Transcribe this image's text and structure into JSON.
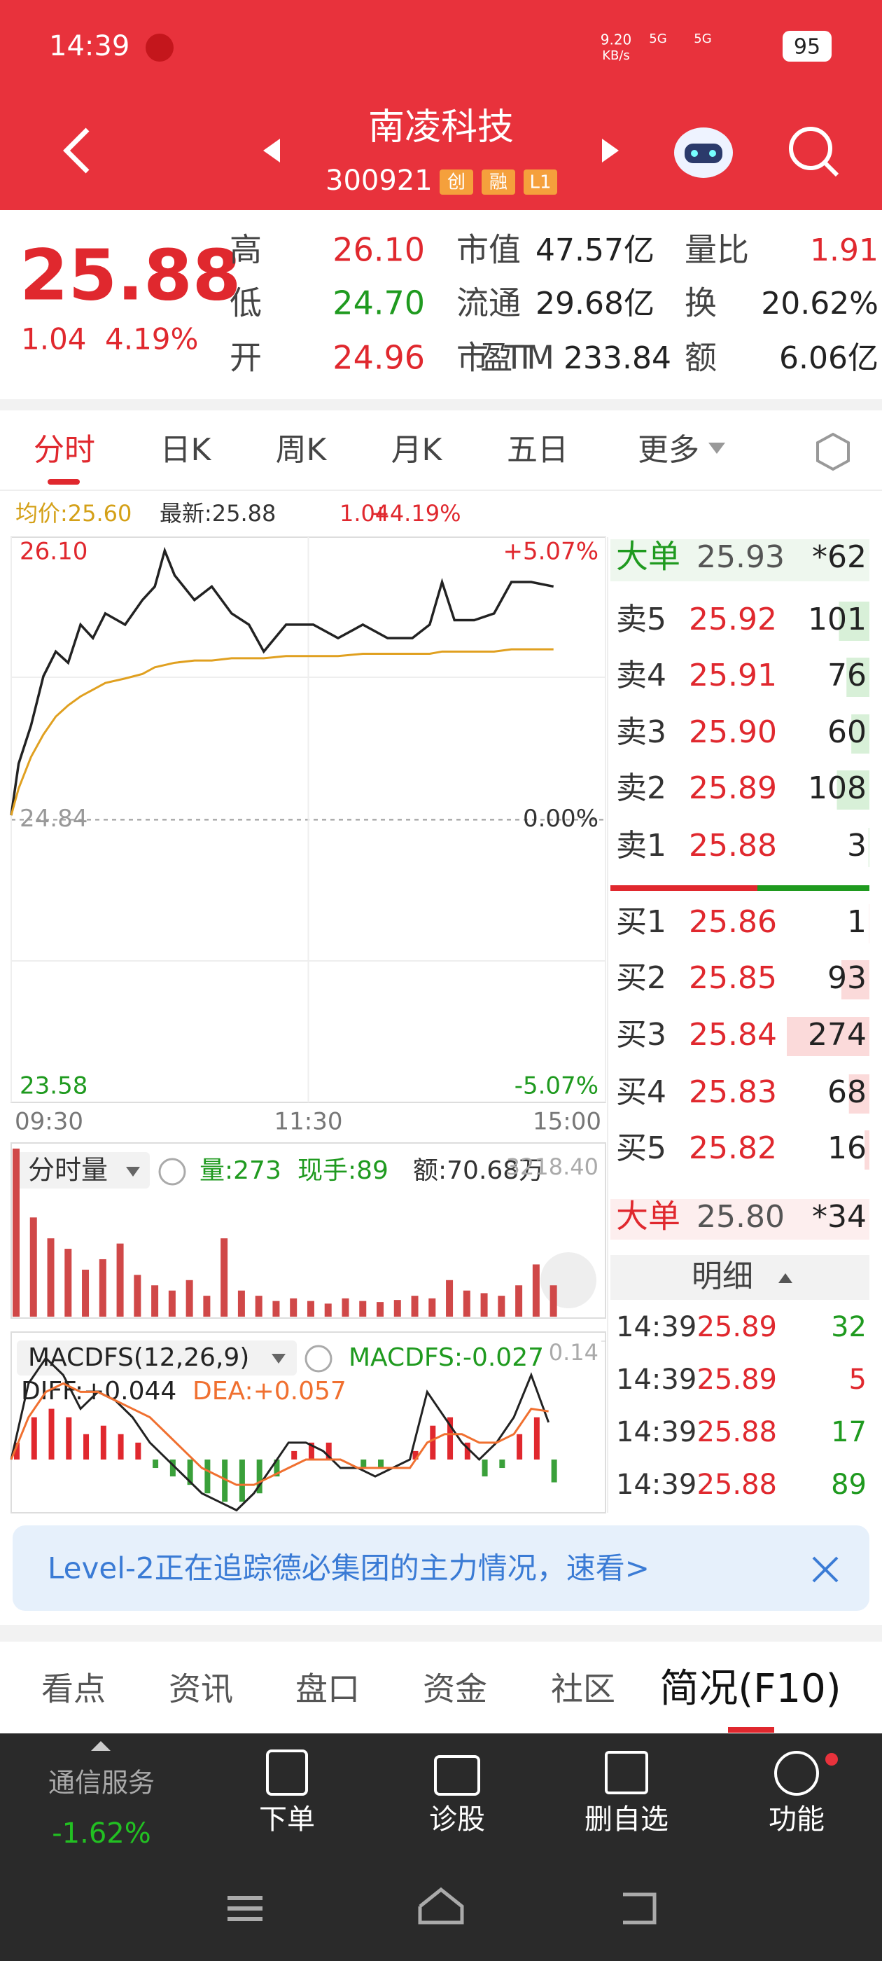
{
  "status_bar": {
    "time": "14:39",
    "speed": "9.20",
    "speed_unit": "KB/s",
    "network": [
      "5G",
      "5G"
    ],
    "battery": "95"
  },
  "header": {
    "title": "南凌科技",
    "code": "300921",
    "badges": [
      "创",
      "融",
      "L1"
    ]
  },
  "quote": {
    "price": "25.88",
    "change": "1.04",
    "change_pct": "4.19%",
    "stats": [
      [
        {
          "label": "高",
          "value": "26.10"
        },
        {
          "label": "低",
          "value": "24.70"
        },
        {
          "label": "开",
          "value": "24.96"
        }
      ],
      [
        {
          "label": "市值",
          "value": "47.57亿"
        },
        {
          "label": "流通",
          "value": "29.68亿"
        },
        {
          "label": "市盈TTM",
          "value": "233.84"
        }
      ],
      [
        {
          "label": "量比",
          "value": "1.91"
        },
        {
          "label": "换",
          "value": "20.62%"
        },
        {
          "label": "额",
          "value": "6.06亿"
        }
      ]
    ]
  },
  "tabs": [
    "分时",
    "日K",
    "周K",
    "月K",
    "五日",
    "更多"
  ],
  "chart_data": [
    {
      "type": "line",
      "legend": [
        "均价:25.60",
        "最新:25.88",
        "1.04",
        "+4.19%"
      ],
      "x": [
        0,
        3,
        8,
        13,
        18,
        23,
        28,
        33,
        38,
        46,
        53,
        58,
        62,
        66,
        74,
        81,
        89,
        96,
        102,
        111,
        122,
        132,
        142,
        152,
        162,
        169,
        174,
        179,
        187,
        195,
        202,
        210,
        219
      ],
      "xlim": [
        0,
        240
      ],
      "xticks": [
        {
          "value": 0,
          "label": "09:30"
        },
        {
          "value": 120,
          "label": "11:30"
        },
        {
          "value": 240,
          "label": "15:00"
        }
      ],
      "ylim": [
        23.58,
        26.1
      ],
      "yticks": [
        {
          "value": 26.1,
          "label": "26.10"
        },
        24.84,
        23.58
      ],
      "y2lim": [
        -5.07,
        5.07
      ],
      "y2ticks": [
        {
          "value": 5.07,
          "label": "+5.07%"
        },
        {
          "value": 0,
          "label": "0.00%"
        },
        {
          "value": -5.07,
          "label": "-5.07%"
        }
      ],
      "series": [
        {
          "color": "#222222",
          "values": [
            24.86,
            25.09,
            25.26,
            25.48,
            25.59,
            25.54,
            25.71,
            25.65,
            25.76,
            25.71,
            25.82,
            25.88,
            26.04,
            25.93,
            25.82,
            25.88,
            25.76,
            25.71,
            25.59,
            25.71,
            25.71,
            25.65,
            25.71,
            25.65,
            25.65,
            25.71,
            25.9,
            25.73,
            25.73,
            25.76,
            25.9,
            25.9,
            25.88
          ]
        },
        {
          "color": "#e0a020",
          "values": [
            24.86,
            24.98,
            25.12,
            25.22,
            25.3,
            25.35,
            25.39,
            25.42,
            25.45,
            25.47,
            25.49,
            25.52,
            25.53,
            25.54,
            25.55,
            25.55,
            25.56,
            25.56,
            25.56,
            25.57,
            25.57,
            25.57,
            25.58,
            25.58,
            25.58,
            25.58,
            25.59,
            25.59,
            25.59,
            25.59,
            25.6,
            25.6,
            25.6
          ]
        }
      ]
    },
    {
      "type": "bar",
      "title": "分时量",
      "labels": [
        "量:273",
        "现手:89",
        "额:70.68万"
      ],
      "x": [
        0,
        7,
        14,
        21,
        28,
        35,
        42,
        49,
        56,
        63,
        70,
        77,
        84,
        91,
        98,
        105,
        112,
        119,
        126,
        133,
        140,
        147,
        154,
        161,
        168,
        175,
        182,
        189,
        196,
        203,
        210,
        217
      ],
      "xlim": [
        0,
        240
      ],
      "ylim": [
        0,
        3218.4
      ],
      "yticks": [
        {
          "value": 3218.4,
          "label": "3218.40"
        }
      ],
      "color": "#d04848",
      "values": [
        3218,
        1900,
        1500,
        1300,
        900,
        1100,
        1400,
        800,
        600,
        500,
        700,
        400,
        1500,
        500,
        400,
        300,
        350,
        300,
        250,
        350,
        300,
        280,
        320,
        400,
        350,
        700,
        500,
        450,
        400,
        600,
        1000,
        600
      ]
    },
    {
      "type": "macd",
      "title": "MACDFS(12,26,9)",
      "labels": [
        "MACDFS:-0.027",
        "DIFF:+0.044",
        "DEA:+0.057"
      ],
      "x": [
        0,
        7,
        14,
        21,
        28,
        35,
        42,
        49,
        56,
        63,
        70,
        77,
        84,
        91,
        98,
        105,
        112,
        119,
        126,
        133,
        140,
        147,
        154,
        161,
        168,
        175,
        182,
        189,
        196,
        203,
        210,
        217
      ],
      "xlim": [
        0,
        240
      ],
      "ylim": [
        -0.063,
        0.14
      ],
      "yticks": [
        0.14
      ],
      "colors": {
        "positive": "#e0282e",
        "negative": "#3aa03a"
      },
      "values": [
        0.02,
        0.05,
        0.06,
        0.05,
        0.03,
        0.04,
        0.03,
        0.02,
        -0.01,
        -0.02,
        -0.03,
        -0.04,
        -0.05,
        -0.05,
        -0.04,
        -0.02,
        0.01,
        0.02,
        0.02,
        0.0,
        -0.01,
        -0.01,
        0.0,
        0.01,
        0.04,
        0.05,
        0.02,
        -0.02,
        -0.01,
        0.03,
        0.05,
        -0.027
      ],
      "series": [
        {
          "color": "#222222",
          "values": [
            0.0,
            0.09,
            0.12,
            0.1,
            0.06,
            0.08,
            0.07,
            0.05,
            0.02,
            0.0,
            -0.02,
            -0.04,
            -0.05,
            -0.06,
            -0.04,
            -0.01,
            0.02,
            0.02,
            0.01,
            -0.01,
            -0.01,
            -0.02,
            -0.01,
            0.0,
            0.08,
            0.05,
            0.02,
            0.0,
            0.02,
            0.05,
            0.1,
            0.044
          ]
        },
        {
          "color": "#f07030",
          "values": [
            0.0,
            0.05,
            0.08,
            0.09,
            0.08,
            0.08,
            0.07,
            0.06,
            0.05,
            0.03,
            0.01,
            -0.01,
            -0.02,
            -0.03,
            -0.03,
            -0.02,
            -0.01,
            0.0,
            0.0,
            0.0,
            -0.01,
            -0.01,
            -0.01,
            -0.01,
            0.02,
            0.03,
            0.03,
            0.02,
            0.02,
            0.03,
            0.06,
            0.057
          ]
        }
      ]
    }
  ],
  "order_book": {
    "big_top": {
      "label": "大单",
      "price": "25.93",
      "qty": "*62"
    },
    "asks": [
      {
        "label": "卖5",
        "price": "25.92",
        "qty": 101
      },
      {
        "label": "卖4",
        "price": "25.91",
        "qty": 76
      },
      {
        "label": "卖3",
        "price": "25.90",
        "qty": 60
      },
      {
        "label": "卖2",
        "price": "25.89",
        "qty": 108
      },
      {
        "label": "卖1",
        "price": "25.88",
        "qty": 3
      }
    ],
    "bids": [
      {
        "label": "买1",
        "price": "25.86",
        "qty": 1
      },
      {
        "label": "买2",
        "price": "25.85",
        "qty": 93
      },
      {
        "label": "买3",
        "price": "25.84",
        "qty": 274
      },
      {
        "label": "买4",
        "price": "25.83",
        "qty": 68
      },
      {
        "label": "买5",
        "price": "25.82",
        "qty": 16
      }
    ],
    "big_bottom": {
      "label": "大单",
      "price": "25.80",
      "qty": "*34"
    },
    "detail_title": "明细",
    "trades": [
      {
        "time": "14:39",
        "price": "25.89",
        "qty": 32,
        "side": "buy"
      },
      {
        "time": "14:39",
        "price": "25.89",
        "qty": 5,
        "side": "sell"
      },
      {
        "time": "14:39",
        "price": "25.88",
        "qty": 17,
        "side": "buy"
      },
      {
        "time": "14:39",
        "price": "25.88",
        "qty": 89,
        "side": "buy"
      }
    ]
  },
  "banner": {
    "text": "Level-2正在追踪德必集团的主力情况，速看>"
  },
  "bottom_tabs": [
    "看点",
    "资讯",
    "盘口",
    "资金",
    "社区",
    "简况(F10)"
  ],
  "toolbar": {
    "sector": "通信服务",
    "sector_change": "-1.62%",
    "buttons": [
      "下单",
      "诊股",
      "删自选",
      "功能"
    ]
  }
}
